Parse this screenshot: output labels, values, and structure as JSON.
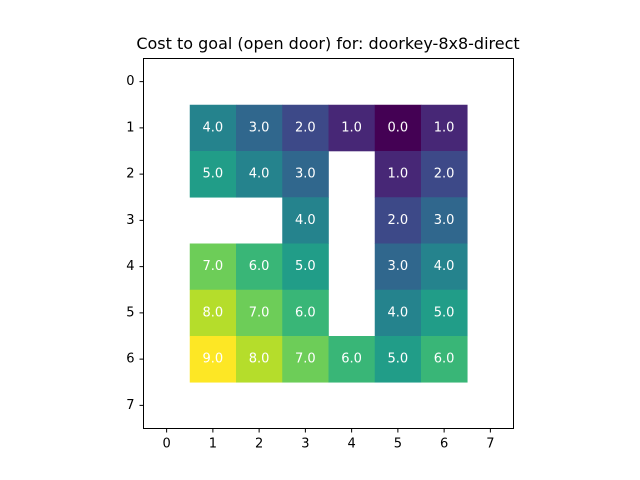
{
  "chart_data": {
    "type": "heatmap",
    "title": "Cost to goal (open door) for: doorkey-8x8-direct",
    "xlabel": "",
    "ylabel": "",
    "x_ticks": [
      "0",
      "1",
      "2",
      "3",
      "4",
      "5",
      "6",
      "7"
    ],
    "y_ticks": [
      "0",
      "1",
      "2",
      "3",
      "4",
      "5",
      "6",
      "7"
    ],
    "xlim": [
      -0.5,
      7.5
    ],
    "ylim": [
      7.5,
      -0.5
    ],
    "colormap": "viridis",
    "vmin": 0,
    "vmax": 9,
    "grid": false,
    "values": [
      [
        null,
        null,
        null,
        null,
        null,
        null,
        null,
        null
      ],
      [
        null,
        4.0,
        3.0,
        2.0,
        1.0,
        0.0,
        1.0,
        null
      ],
      [
        null,
        5.0,
        4.0,
        3.0,
        null,
        1.0,
        2.0,
        null
      ],
      [
        null,
        null,
        null,
        4.0,
        null,
        2.0,
        3.0,
        null
      ],
      [
        null,
        7.0,
        6.0,
        5.0,
        null,
        3.0,
        4.0,
        null
      ],
      [
        null,
        8.0,
        7.0,
        6.0,
        null,
        4.0,
        5.0,
        null
      ],
      [
        null,
        9.0,
        8.0,
        7.0,
        6.0,
        5.0,
        6.0,
        null
      ],
      [
        null,
        null,
        null,
        null,
        null,
        null,
        null,
        null
      ]
    ]
  }
}
